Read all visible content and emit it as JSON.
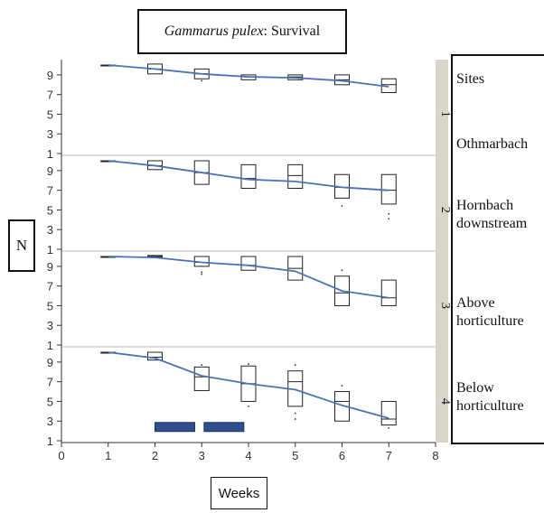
{
  "title": {
    "italic": "Gammarus pulex",
    "rest": ": Survival"
  },
  "ylabel": "N",
  "xlabel": "Weeks",
  "legend": {
    "heading": "Sites",
    "sites": [
      "Othmarbach",
      "Hornbach downstream",
      "Above horticulture",
      "Below horticulture"
    ]
  },
  "colors": {
    "trend": "#4a72b8",
    "treatment": "#2e4e8e",
    "strip": "#d8d6c8",
    "box": "#222222"
  },
  "chart_data": {
    "type": "box",
    "title": "Gammarus pulex: Survival",
    "xlabel": "Weeks",
    "ylabel": "N",
    "xlim": [
      0,
      8
    ],
    "xticks": [
      0,
      1,
      2,
      3,
      4,
      5,
      6,
      7,
      8
    ],
    "ylim": [
      1,
      10
    ],
    "yticks": [
      1,
      3,
      5,
      7,
      9
    ],
    "ytick_labels": [
      "1",
      "3",
      "5",
      "7",
      "9"
    ],
    "treatment_periods": [
      [
        2,
        2.85
      ],
      [
        3.05,
        3.9
      ]
    ],
    "panels": [
      {
        "strip": "1",
        "trend": {
          "x": [
            1,
            2,
            3,
            4,
            5,
            6,
            7
          ],
          "y": [
            10,
            9.6,
            9.1,
            8.8,
            8.7,
            8.4,
            7.8
          ]
        },
        "boxes": [
          {
            "x": 1,
            "q1": 10,
            "median": 10,
            "q3": 10,
            "outliers": []
          },
          {
            "x": 2,
            "q1": 9.1,
            "median": 9.6,
            "q3": 10.1,
            "outliers": []
          },
          {
            "x": 3,
            "q1": 8.6,
            "median": 9.1,
            "q3": 9.6,
            "outliers": [
              8.4
            ]
          },
          {
            "x": 4,
            "q1": 8.5,
            "median": 8.8,
            "q3": 9.0,
            "outliers": []
          },
          {
            "x": 5,
            "q1": 8.5,
            "median": 8.8,
            "q3": 9.0,
            "outliers": []
          },
          {
            "x": 6,
            "q1": 8.0,
            "median": 8.5,
            "q3": 9.0,
            "outliers": []
          },
          {
            "x": 7,
            "q1": 7.2,
            "median": 8.0,
            "q3": 8.6,
            "outliers": []
          }
        ]
      },
      {
        "strip": "2",
        "trend": {
          "x": [
            1,
            2,
            3,
            4,
            5,
            6,
            7
          ],
          "y": [
            10,
            9.5,
            8.8,
            8.1,
            7.9,
            7.3,
            7.0
          ]
        },
        "boxes": [
          {
            "x": 1,
            "q1": 10,
            "median": 10,
            "q3": 10,
            "outliers": []
          },
          {
            "x": 2,
            "q1": 9.1,
            "median": 9.5,
            "q3": 10.0,
            "outliers": []
          },
          {
            "x": 3,
            "q1": 7.6,
            "median": 8.8,
            "q3": 10.0,
            "outliers": []
          },
          {
            "x": 4,
            "q1": 7.2,
            "median": 8.2,
            "q3": 9.6,
            "outliers": []
          },
          {
            "x": 5,
            "q1": 7.2,
            "median": 8.5,
            "q3": 9.6,
            "outliers": []
          },
          {
            "x": 6,
            "q1": 6.2,
            "median": 7.3,
            "q3": 8.6,
            "outliers": [
              5.4
            ]
          },
          {
            "x": 7,
            "q1": 5.6,
            "median": 7.0,
            "q3": 8.6,
            "outliers": [
              4.6,
              4.1
            ]
          }
        ]
      },
      {
        "strip": "3",
        "trend": {
          "x": [
            1,
            2,
            3,
            4,
            5,
            6,
            7
          ],
          "y": [
            10,
            9.9,
            9.4,
            9.1,
            8.5,
            6.5,
            5.8
          ]
        },
        "boxes": [
          {
            "x": 1,
            "q1": 10,
            "median": 10,
            "q3": 10,
            "outliers": []
          },
          {
            "x": 2,
            "q1": 9.9,
            "median": 10,
            "q3": 10.1,
            "outliers": []
          },
          {
            "x": 3,
            "q1": 9.0,
            "median": 9.4,
            "q3": 10.0,
            "outliers": [
              8.4,
              8.2
            ]
          },
          {
            "x": 4,
            "q1": 8.6,
            "median": 9.1,
            "q3": 10.0,
            "outliers": []
          },
          {
            "x": 5,
            "q1": 7.6,
            "median": 8.8,
            "q3": 10.0,
            "outliers": []
          },
          {
            "x": 6,
            "q1": 5.0,
            "median": 6.3,
            "q3": 8.0,
            "outliers": [
              8.6
            ]
          },
          {
            "x": 7,
            "q1": 5.0,
            "median": 5.8,
            "q3": 7.6,
            "outliers": []
          }
        ]
      },
      {
        "strip": "4",
        "trend": {
          "x": [
            1,
            2,
            3,
            4,
            5,
            6,
            7
          ],
          "y": [
            10,
            9.4,
            7.6,
            6.8,
            6.2,
            4.6,
            3.3
          ]
        },
        "boxes": [
          {
            "x": 1,
            "q1": 10,
            "median": 10,
            "q3": 10,
            "outliers": []
          },
          {
            "x": 2,
            "q1": 9.2,
            "median": 9.5,
            "q3": 10.0,
            "outliers": []
          },
          {
            "x": 3,
            "q1": 6.1,
            "median": 7.5,
            "q3": 8.5,
            "outliers": [
              8.7
            ]
          },
          {
            "x": 4,
            "q1": 5.0,
            "median": 6.8,
            "q3": 8.6,
            "outliers": [
              8.8,
              4.5
            ]
          },
          {
            "x": 5,
            "q1": 4.5,
            "median": 7.0,
            "q3": 8.1,
            "outliers": [
              8.7,
              3.8,
              3.2
            ]
          },
          {
            "x": 6,
            "q1": 3.0,
            "median": 5.0,
            "q3": 6.0,
            "outliers": [
              6.6
            ]
          },
          {
            "x": 7,
            "q1": 2.6,
            "median": 3.2,
            "q3": 5.0,
            "outliers": [
              2.3
            ]
          }
        ]
      }
    ]
  }
}
